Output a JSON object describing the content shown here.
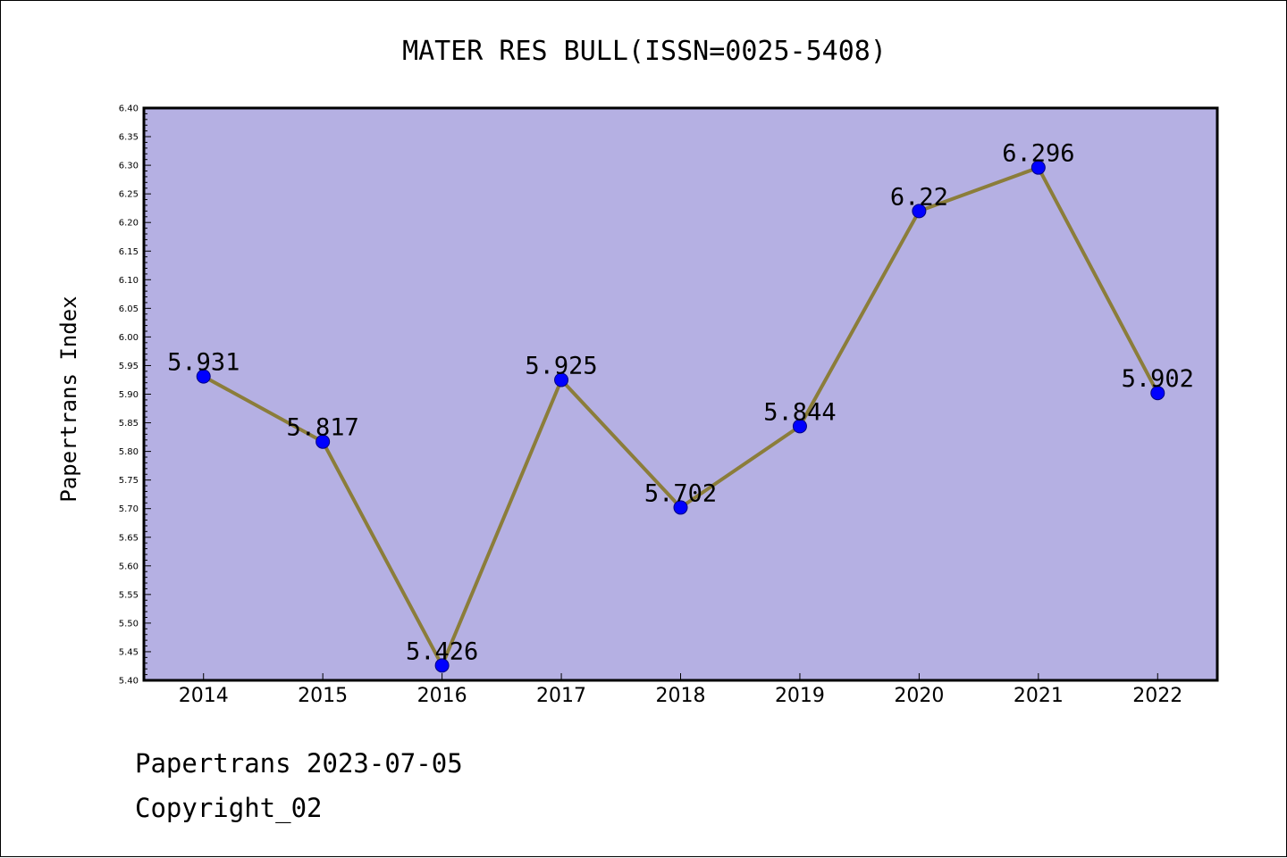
{
  "chart_data": {
    "type": "line",
    "title": "MATER RES BULL(ISSN=0025-5408)",
    "xlabel": "",
    "ylabel": "Papertrans Index",
    "categories": [
      "2014",
      "2015",
      "2016",
      "2017",
      "2018",
      "2019",
      "2020",
      "2021",
      "2022"
    ],
    "series": [
      {
        "values": [
          5.931,
          5.817,
          5.426,
          5.925,
          5.702,
          5.844,
          6.22,
          6.296,
          5.902
        ],
        "data_labels": [
          "5.931",
          "5.817",
          "5.426",
          "5.925",
          "5.702",
          "5.844",
          "6.22",
          "6.296",
          "5.902"
        ]
      }
    ],
    "ylim": [
      5.4,
      6.4
    ],
    "ytick_step": 0.05,
    "yticks": [
      "5.40",
      "5.45",
      "5.50",
      "5.55",
      "5.60",
      "5.65",
      "5.70",
      "5.75",
      "5.80",
      "5.85",
      "5.90",
      "5.95",
      "6.00",
      "6.05",
      "6.10",
      "6.15",
      "6.20",
      "6.25",
      "6.30",
      "6.35",
      "6.40"
    ],
    "grid": false,
    "legend": "none",
    "colors": {
      "plot_background": "#b5b0e3",
      "line": "#8b7d3a",
      "marker": "#0000ff",
      "marker_edge": "#000080"
    }
  },
  "footer": {
    "line1": "Papertrans 2023-07-05",
    "line2": "Copyright_02"
  }
}
